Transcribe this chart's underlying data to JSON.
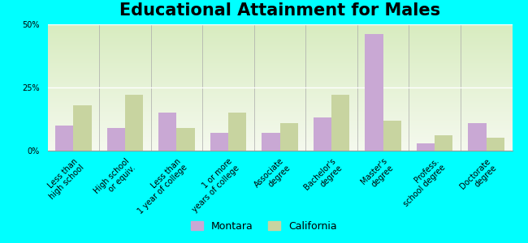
{
  "title": "Educational Attainment for Males",
  "categories": [
    "Less than\nhigh school",
    "High school\nor equiv.",
    "Less than\n1 year of college",
    "1 or more\nyears of college",
    "Associate\ndegree",
    "Bachelor's\ndegree",
    "Master's\ndegree",
    "Profess.\nschool degree",
    "Doctorate\ndegree"
  ],
  "montara": [
    10,
    9,
    15,
    7,
    7,
    13,
    46,
    3,
    11
  ],
  "california": [
    18,
    22,
    9,
    15,
    11,
    22,
    12,
    6,
    5
  ],
  "montara_color": "#c9a8d4",
  "california_color": "#c8d4a0",
  "background_color": "#00ffff",
  "plot_bg_color": "#e8f0d8",
  "ylim": [
    0,
    50
  ],
  "yticks": [
    0,
    25,
    50
  ],
  "ytick_labels": [
    "0%",
    "25%",
    "50%"
  ],
  "title_fontsize": 15,
  "legend_fontsize": 9,
  "tick_fontsize": 7,
  "bar_width": 0.35
}
